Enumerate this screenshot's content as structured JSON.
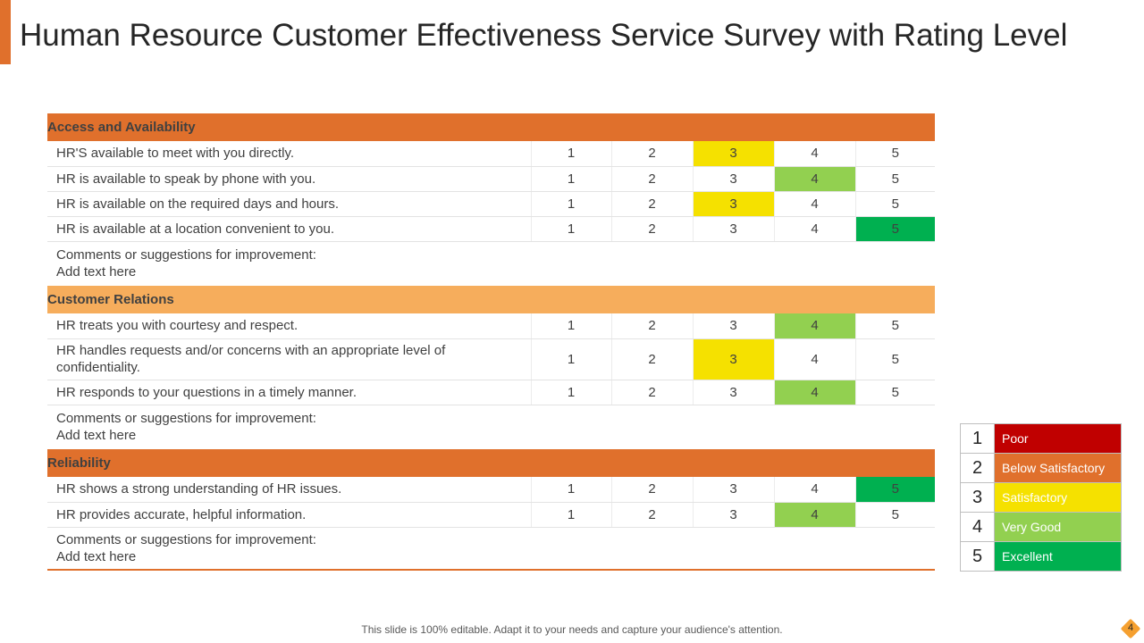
{
  "title": "Human Resource Customer Effectiveness Service Survey with Rating Level",
  "sections": [
    {
      "name": "Access and Availability",
      "tone": "dark",
      "questions": [
        {
          "text": "HR'S available to meet with you directly.",
          "selected": 3
        },
        {
          "text": "HR is available to speak by phone with you.",
          "selected": 4
        },
        {
          "text": "HR is available on the required days and hours.",
          "selected": 3
        },
        {
          "text": "HR is available at a location convenient to you.",
          "selected": 5
        }
      ],
      "comment_label": "Comments or suggestions for improvement:",
      "comment_value": "Add text here"
    },
    {
      "name": "Customer Relations",
      "tone": "light",
      "questions": [
        {
          "text": "HR treats you with courtesy and respect.",
          "selected": 4
        },
        {
          "text": "HR handles requests and/or concerns with an appropriate level of confidentiality.",
          "selected": 3
        },
        {
          "text": "HR responds to your questions in a timely manner.",
          "selected": 4
        }
      ],
      "comment_label": "Comments or suggestions for improvement:",
      "comment_value": "Add text here"
    },
    {
      "name": "Reliability",
      "tone": "dark",
      "questions": [
        {
          "text": "HR shows a strong understanding of HR issues.",
          "selected": 5
        },
        {
          "text": "HR provides accurate, helpful information.",
          "selected": 4
        }
      ],
      "comment_label": "Comments or suggestions for improvement:",
      "comment_value": "Add text here"
    }
  ],
  "rating_options": [
    "1",
    "2",
    "3",
    "4",
    "5"
  ],
  "legend": [
    {
      "num": "1",
      "label": "Poor",
      "color": "#c00000"
    },
    {
      "num": "2",
      "label": "Below Satisfactory",
      "color": "#e0702c"
    },
    {
      "num": "3",
      "label": "Satisfactory",
      "color": "#f5e100"
    },
    {
      "num": "4",
      "label": "Very Good",
      "color": "#92d050"
    },
    {
      "num": "5",
      "label": "Excellent",
      "color": "#00b050"
    }
  ],
  "footer": "This slide is 100% editable. Adapt it to your needs and capture your audience's attention.",
  "page_number": "4"
}
